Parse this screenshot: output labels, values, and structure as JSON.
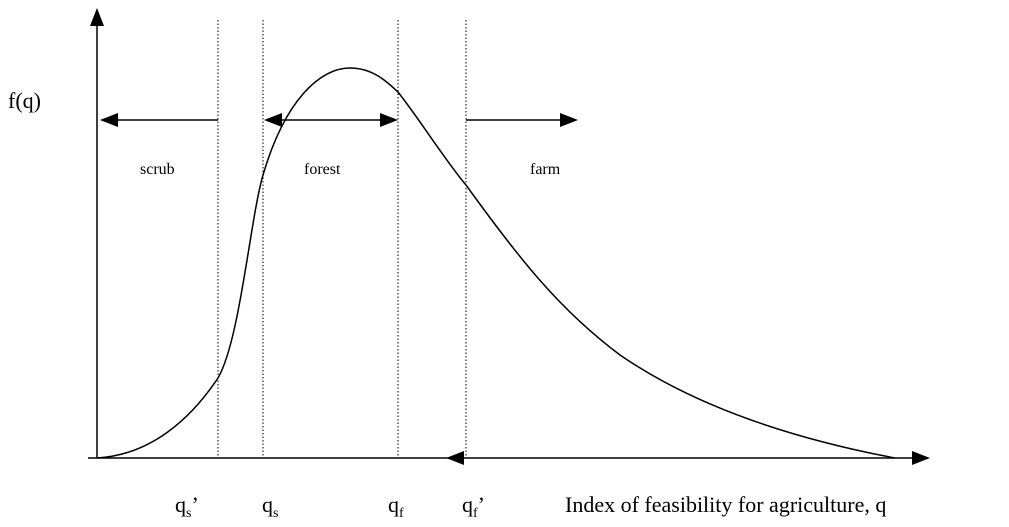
{
  "axes": {
    "y_label": "f(q)",
    "x_label": "Index of feasibility for agriculture, q"
  },
  "regions": [
    "scrub",
    "forest",
    "farm"
  ],
  "thresholds": [
    {
      "base": "q",
      "sub": "s",
      "suffix": "’"
    },
    {
      "base": "q",
      "sub": "s"
    },
    {
      "base": "q",
      "sub": "f"
    },
    {
      "base": "q",
      "sub": "f",
      "suffix": "’"
    }
  ]
}
